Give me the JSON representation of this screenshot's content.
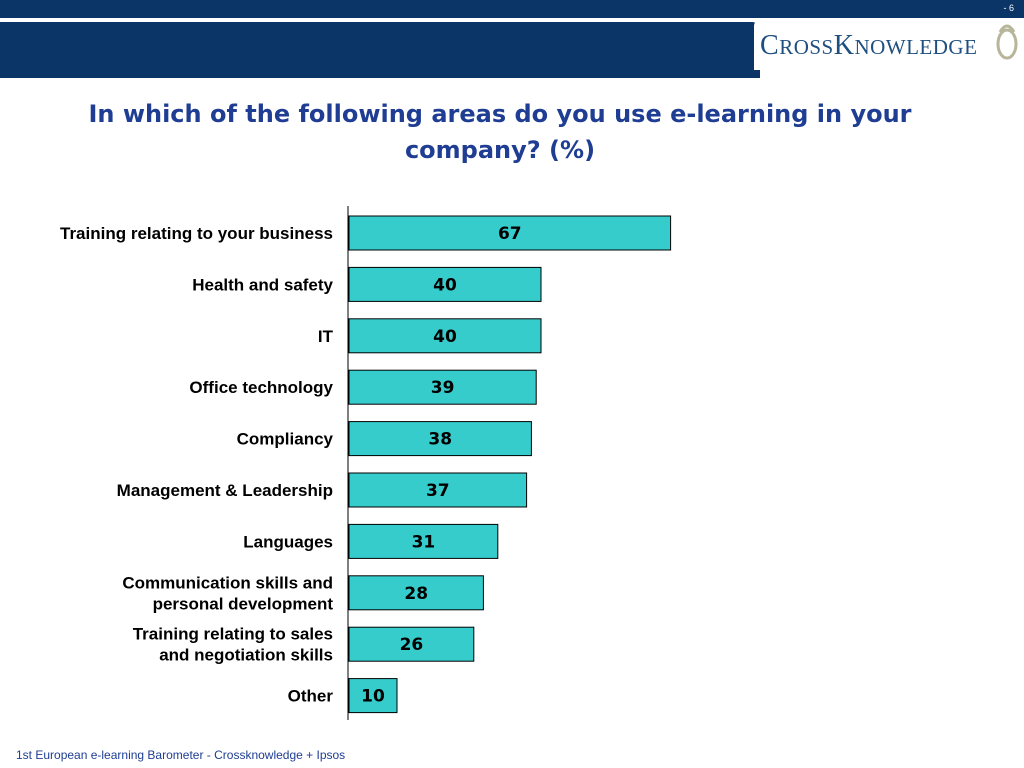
{
  "header": {
    "page_number": "- 6"
  },
  "logo": {
    "text_part1": "C",
    "text_part2": "ROSS",
    "text_part3": "K",
    "text_part4": "NOWLEDGE"
  },
  "chart_data": {
    "type": "bar",
    "orientation": "horizontal",
    "title": "In which of the following areas do you use e-learning in your company? (%)",
    "categories": [
      [
        "Training relating to your business"
      ],
      [
        "Health and safety"
      ],
      [
        "IT"
      ],
      [
        "Office technology"
      ],
      [
        "Compliancy"
      ],
      [
        "Management & Leadership"
      ],
      [
        "Languages"
      ],
      [
        "Communication skills and",
        "personal development"
      ],
      [
        "Training relating to sales",
        "and negotiation skills"
      ],
      [
        "Other"
      ]
    ],
    "values": [
      67,
      40,
      40,
      39,
      38,
      37,
      31,
      28,
      26,
      10
    ],
    "xlim": [
      0,
      100
    ],
    "grid": false,
    "bar_color": "#36cccc"
  },
  "footer": {
    "source": "1st European e-learning Barometer - Crossknowledge + Ipsos"
  }
}
